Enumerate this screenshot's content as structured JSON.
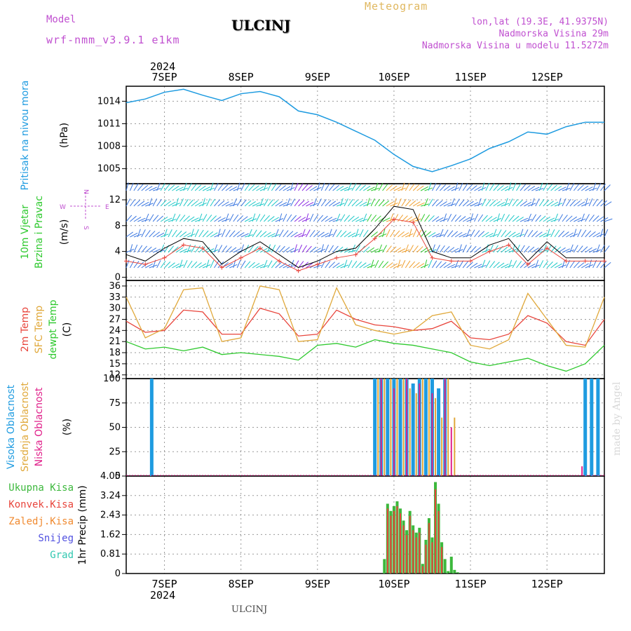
{
  "header": {
    "model_label": "Model",
    "model_name": "wrf-nmm_v3.9.1  e1km",
    "title": "ULCINJ",
    "product": "Meteogram",
    "lonlat": "lon,lat (19.3E, 41.9375N)",
    "altitude": "Nadmorska Visina 29m",
    "model_altitude": "Nadmorska Visina u modelu 11.5272m"
  },
  "footer": {
    "station": "ULCINJ",
    "credit": "made by Angel"
  },
  "colors": {
    "pressure": "#1e9be0",
    "temp2m": "#e8453c",
    "sfc_temp": "#e0a83a",
    "dewpoint": "#2ec92e",
    "high_cloud": "#1e9be0",
    "mid_cloud": "#e0a83a",
    "low_cloud": "#e0208a",
    "total_precip": "#3cb83c",
    "conv_precip": "#e8453c",
    "frozen_precip": "#f08a30",
    "snow": "#5050e0",
    "graupel": "#30c8b0",
    "wind_label": "#2ec92e",
    "wind_label2": "#2ec92e",
    "rose_label": "#c050d0"
  },
  "chart_data": {
    "type": "line",
    "time_axis": {
      "start": "2024-09-06 12:00",
      "end": "2024-09-12 18:00",
      "year": "2024",
      "day_labels": [
        "7SEP",
        "8SEP",
        "9SEP",
        "10SEP",
        "11SEP",
        "12SEP"
      ],
      "day_dates": [
        "2024-09-07",
        "2024-09-08",
        "2024-09-09",
        "2024-09-10",
        "2024-09-11",
        "2024-09-12"
      ],
      "grid": true
    },
    "panels": [
      {
        "id": "pressure",
        "ylabel_name": "Pritisak na nivou mora",
        "unit": "(hPa)",
        "ylim": [
          1003,
          1016
        ],
        "yticks": [
          "1014",
          "1011",
          "1008",
          "1005"
        ],
        "series": [
          {
            "key": "mslp",
            "x_hours": [
              0,
              6,
              12,
              18,
              24,
              30,
              36,
              42,
              48,
              54,
              60,
              66,
              72,
              78,
              84,
              90,
              96,
              102,
              108,
              114,
              120,
              126,
              132,
              138,
              144,
              150
            ],
            "values": [
              1013.8,
              1014.3,
              1015.2,
              1015.6,
              1014.8,
              1014.1,
              1015.0,
              1015.3,
              1014.6,
              1012.7,
              1012.2,
              1011.2,
              1010.0,
              1008.8,
              1006.9,
              1005.3,
              1004.6,
              1005.4,
              1006.3,
              1007.7,
              1008.6,
              1009.9,
              1009.6,
              1010.6,
              1011.2,
              1011.2
            ]
          }
        ]
      },
      {
        "id": "wind",
        "ylabel_names": [
          "10m Vjetar",
          "Brzina i Pravac"
        ],
        "unit": "(m/s)",
        "ylim": [
          -0.5,
          14.5
        ],
        "yticks": [
          "12",
          "8",
          "4",
          "0"
        ],
        "rose": {
          "north": "N",
          "south": "S",
          "east": "E",
          "west": "W"
        },
        "series": [
          {
            "key": "speed",
            "x_hours": [
              0,
              6,
              12,
              18,
              24,
              30,
              36,
              42,
              48,
              54,
              60,
              66,
              72,
              78,
              84,
              90,
              96,
              102,
              108,
              114,
              120,
              126,
              132,
              138,
              144,
              150
            ],
            "values": [
              3.5,
              2.5,
              4.5,
              6.0,
              5.5,
              2.0,
              4.0,
              5.5,
              3.5,
              1.5,
              2.5,
              4.0,
              4.5,
              7.5,
              11.0,
              10.5,
              4.0,
              3.0,
              3.0,
              5.0,
              6.0,
              2.5,
              5.5,
              3.0,
              3.0,
              3.0
            ]
          },
          {
            "key": "gust",
            "x_hours": [
              0,
              6,
              12,
              18,
              24,
              30,
              36,
              42,
              48,
              54,
              60,
              66,
              72,
              78,
              84,
              90,
              96,
              102,
              108,
              114,
              120,
              126,
              132,
              138,
              144,
              150
            ],
            "values": [
              2.5,
              2.0,
              3.0,
              5.0,
              4.5,
              1.5,
              3.0,
              4.5,
              2.5,
              1.0,
              2.0,
              3.0,
              3.5,
              6.0,
              9.0,
              8.5,
              3.0,
              2.5,
              2.5,
              4.0,
              5.0,
              2.0,
              4.5,
              2.5,
              2.5,
              2.5
            ]
          }
        ]
      },
      {
        "id": "temperature",
        "ylabel_names": [
          "2m Temp",
          "SFC Temp",
          "dewpt Temp"
        ],
        "unit": "(C)",
        "ylim": [
          11,
          37.5
        ],
        "yticks": [
          "36",
          "33",
          "30",
          "27",
          "24",
          "21",
          "18",
          "15",
          "12"
        ],
        "series": [
          {
            "key": "t2m",
            "x_hours": [
              0,
              6,
              12,
              18,
              24,
              30,
              36,
              42,
              48,
              54,
              60,
              66,
              72,
              78,
              84,
              90,
              96,
              102,
              108,
              114,
              120,
              126,
              132,
              138,
              144,
              150
            ],
            "values": [
              26.5,
              23.5,
              24.0,
              29.5,
              29.0,
              23.0,
              23.0,
              30.0,
              28.5,
              22.5,
              23.0,
              29.5,
              27.0,
              25.5,
              25.0,
              24.0,
              24.5,
              26.5,
              22.0,
              21.5,
              23.0,
              28.0,
              26.0,
              21.0,
              20.0,
              27.0
            ]
          },
          {
            "key": "tsfc",
            "x_hours": [
              0,
              6,
              12,
              18,
              24,
              30,
              36,
              42,
              48,
              54,
              60,
              66,
              72,
              78,
              84,
              90,
              96,
              102,
              108,
              114,
              120,
              126,
              132,
              138,
              144,
              150
            ],
            "values": [
              33.0,
              22.0,
              24.5,
              35.0,
              35.5,
              21.0,
              22.0,
              36.0,
              35.0,
              21.0,
              21.5,
              35.5,
              25.5,
              24.0,
              23.0,
              24.0,
              28.0,
              29.0,
              20.0,
              19.0,
              21.5,
              34.0,
              27.0,
              20.0,
              19.5,
              33.0
            ]
          },
          {
            "key": "dewpt",
            "x_hours": [
              0,
              6,
              12,
              18,
              24,
              30,
              36,
              42,
              48,
              54,
              60,
              66,
              72,
              78,
              84,
              90,
              96,
              102,
              108,
              114,
              120,
              126,
              132,
              138,
              144,
              150
            ],
            "values": [
              21.0,
              19.0,
              19.5,
              18.5,
              19.5,
              17.5,
              18.0,
              17.5,
              17.0,
              16.0,
              20.0,
              20.5,
              19.5,
              21.5,
              20.5,
              20.0,
              19.0,
              18.0,
              15.5,
              14.5,
              15.5,
              16.5,
              14.5,
              13.0,
              15.0,
              20.0
            ]
          }
        ]
      },
      {
        "id": "cloud",
        "ylabel_names": [
          "Visoka Oblacnost",
          "Srednja Oblacnost",
          "Niska Oblacnost"
        ],
        "unit": "(%)",
        "ylim": [
          0,
          100
        ],
        "yticks": [
          "100",
          "75",
          "50",
          "25",
          "0"
        ],
        "series": [
          {
            "key": "high",
            "x_hours": [
              8,
              78,
              80,
              82,
              84,
              86,
              88,
              90,
              92,
              94,
              96,
              98,
              100,
              144,
              146,
              148
            ],
            "values": [
              100,
              100,
              100,
              100,
              100,
              100,
              100,
              95,
              100,
              100,
              100,
              90,
              100,
              100,
              100,
              100
            ]
          },
          {
            "key": "mid",
            "x_hours": [
              79,
              81,
              83,
              85,
              87,
              89,
              91,
              93,
              95,
              97,
              99,
              101,
              103
            ],
            "values": [
              100,
              100,
              100,
              100,
              100,
              90,
              85,
              100,
              100,
              80,
              60,
              100,
              60
            ]
          },
          {
            "key": "low",
            "x_hours": [
              80,
              84,
              88,
              92,
              96,
              100,
              102,
              143
            ],
            "values": [
              100,
              90,
              100,
              95,
              85,
              100,
              50,
              10
            ]
          }
        ]
      },
      {
        "id": "precip",
        "ylabel_names": [
          "Ukupna Kisa",
          "Konvek.Kisa",
          "Zaledj.Kisa",
          "Snijeg",
          "Grad"
        ],
        "unit": "1hr Precip (mm)",
        "ylim": [
          0,
          4.05
        ],
        "yticks": [
          "4.05",
          "3.24",
          "2.43",
          "1.62",
          "0.81",
          "0"
        ],
        "series": [
          {
            "key": "total",
            "x_hours": [
              81,
              82,
              83,
              84,
              85,
              86,
              87,
              88,
              89,
              90,
              91,
              92,
              93,
              94,
              95,
              96,
              97,
              98,
              99,
              100,
              101,
              102,
              103,
              104
            ],
            "values": [
              0.6,
              2.9,
              2.6,
              2.8,
              3.0,
              2.7,
              2.2,
              1.8,
              2.6,
              2.0,
              1.7,
              1.9,
              0.4,
              1.4,
              2.3,
              1.5,
              3.8,
              2.9,
              1.3,
              0.6,
              0.1,
              0.7,
              0.15,
              0.05
            ]
          },
          {
            "key": "convective",
            "x_hours": [
              82,
              83,
              84,
              85,
              86,
              87,
              88,
              89,
              90,
              91,
              92,
              93,
              94,
              95,
              96,
              97,
              98,
              99
            ],
            "values": [
              2.7,
              2.4,
              2.6,
              2.8,
              2.5,
              2.0,
              1.6,
              2.4,
              1.8,
              1.5,
              1.7,
              0.3,
              1.2,
              2.1,
              1.3,
              3.5,
              2.6,
              1.1
            ]
          }
        ]
      }
    ]
  }
}
